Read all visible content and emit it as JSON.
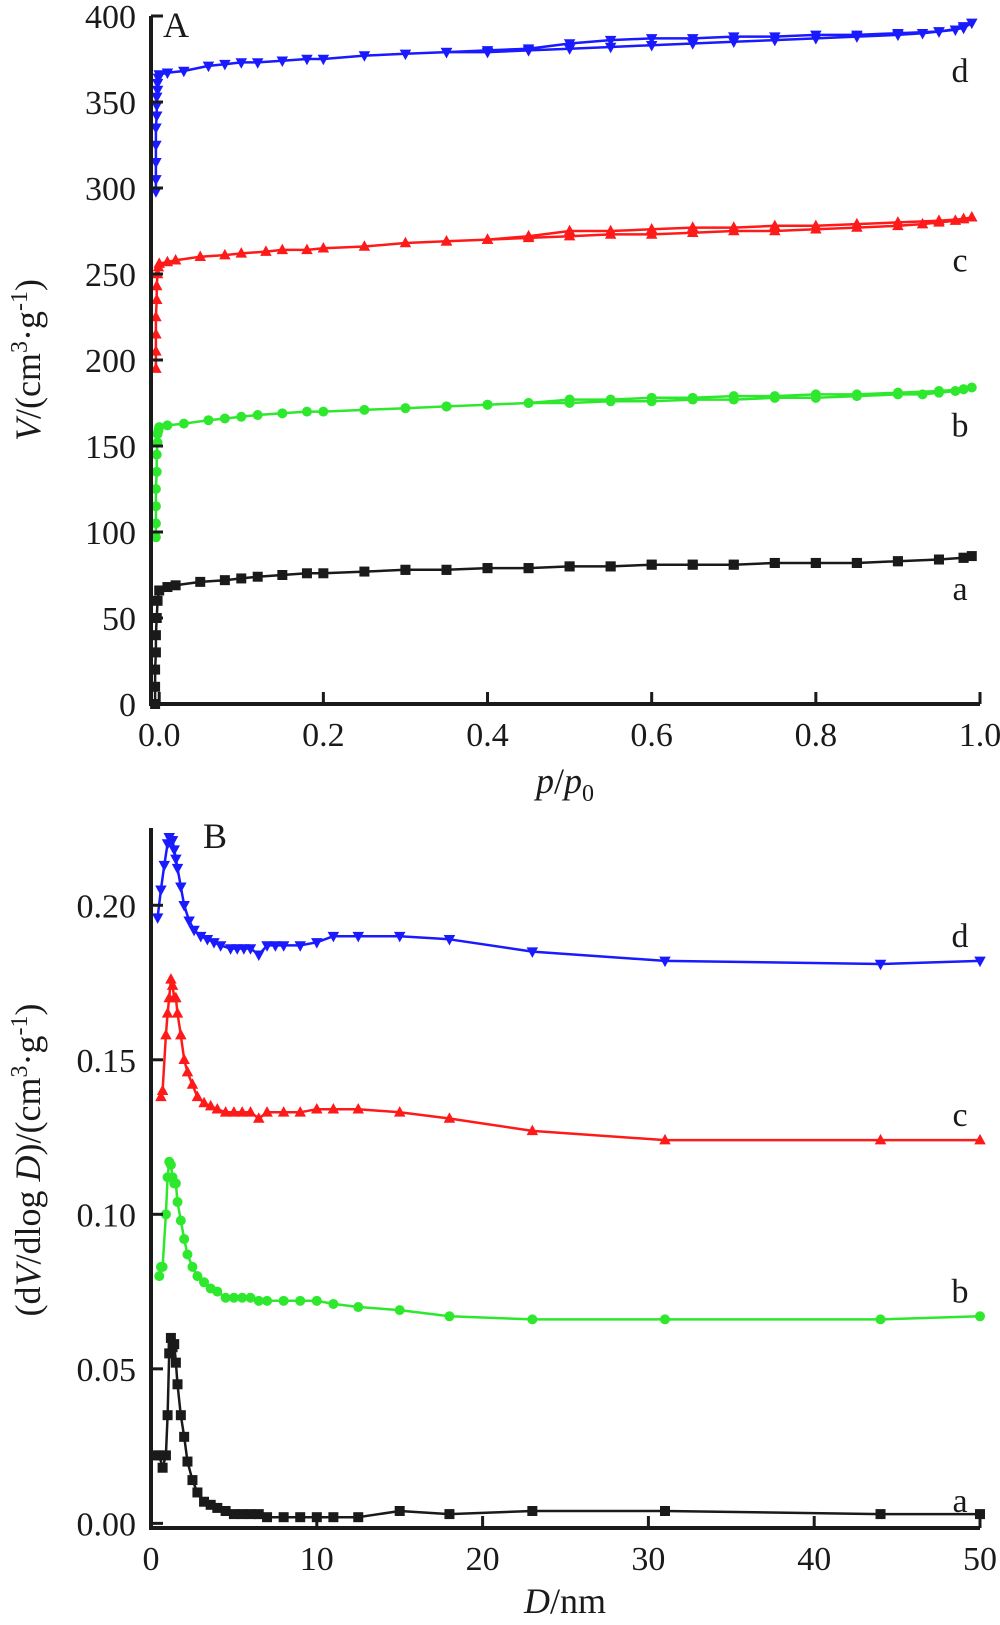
{
  "figure": {
    "panels": [
      {
        "id": "A",
        "panel_label": "A",
        "xlabel_italic": "p",
        "xlabel_mid": "/",
        "xlabel_italic2": "p",
        "xlabel_sub": "0",
        "ylabel_italic": "V",
        "ylabel_rest": "/(cm",
        "ylabel_sup1": "3",
        "ylabel_rest2": "·g",
        "ylabel_sup2": "-1",
        "ylabel_end": ")"
      },
      {
        "id": "B",
        "panel_label": "B",
        "xlabel_italic": "D",
        "xlabel_rest": "/nm",
        "ylabel_a": "(d",
        "ylabel_italic1": "V",
        "ylabel_b": "/dlog ",
        "ylabel_italic2": "D",
        "ylabel_c": ")/(cm",
        "ylabel_sup1": "3",
        "ylabel_d": "·g",
        "ylabel_sup2": "-1",
        "ylabel_e": ")"
      }
    ]
  },
  "chart_data": [
    {
      "type": "line",
      "panel": "A",
      "xlim": [
        -0.01,
        1.0
      ],
      "ylim": [
        0,
        400
      ],
      "xticks": [
        0.0,
        0.2,
        0.4,
        0.6,
        0.8,
        1.0
      ],
      "xtick_labels": [
        "0.0",
        "0.2",
        "0.4",
        "0.6",
        "0.8",
        "1.0"
      ],
      "yticks": [
        0,
        50,
        100,
        150,
        200,
        250,
        300,
        350,
        400
      ],
      "ytick_labels": [
        "0",
        "50",
        "100",
        "150",
        "200",
        "250",
        "300",
        "350",
        "400"
      ],
      "grid": false,
      "series": [
        {
          "name": "a",
          "color": "#1a1a1a",
          "marker": "square",
          "x": [
            -0.005,
            -0.005,
            -0.005,
            -0.004,
            -0.004,
            -0.003,
            -0.002,
            0.0,
            0.01,
            0.02,
            0.05,
            0.08,
            0.1,
            0.12,
            0.15,
            0.18,
            0.2,
            0.25,
            0.3,
            0.35,
            0.4,
            0.45,
            0.5,
            0.55,
            0.6,
            0.65,
            0.7,
            0.75,
            0.8,
            0.85,
            0.9,
            0.95,
            0.98,
            0.99,
            0.98,
            0.95,
            0.9,
            0.85,
            0.8,
            0.75,
            0.7,
            0.65,
            0.6,
            0.55,
            0.5,
            0.45,
            0.4,
            0.35,
            0.3
          ],
          "y": [
            0,
            10,
            20,
            30,
            40,
            50,
            60,
            66,
            68,
            69,
            71,
            72,
            73,
            74,
            75,
            76,
            76,
            77,
            78,
            78,
            79,
            79,
            80,
            80,
            81,
            81,
            81,
            82,
            82,
            82,
            83,
            84,
            85,
            86,
            85,
            84,
            83,
            82,
            82,
            82,
            81,
            81,
            81,
            80,
            80,
            79,
            79,
            78,
            78
          ]
        },
        {
          "name": "b",
          "color": "#2ee82e",
          "marker": "circle",
          "x": [
            -0.004,
            -0.004,
            -0.004,
            -0.004,
            -0.003,
            -0.003,
            -0.002,
            -0.002,
            -0.001,
            0.0,
            0.01,
            0.03,
            0.06,
            0.08,
            0.1,
            0.12,
            0.15,
            0.18,
            0.2,
            0.25,
            0.3,
            0.35,
            0.4,
            0.45,
            0.5,
            0.55,
            0.6,
            0.65,
            0.7,
            0.75,
            0.8,
            0.85,
            0.9,
            0.93,
            0.95,
            0.97,
            0.98,
            0.99,
            0.98,
            0.95,
            0.9,
            0.85,
            0.8,
            0.75,
            0.7,
            0.65,
            0.6,
            0.55,
            0.5,
            0.45,
            0.4,
            0.35
          ],
          "y": [
            97,
            105,
            115,
            125,
            135,
            145,
            152,
            157,
            159,
            161,
            162,
            163,
            165,
            166,
            167,
            168,
            169,
            170,
            170,
            171,
            172,
            173,
            174,
            175,
            175,
            176,
            176,
            177,
            177,
            178,
            178,
            179,
            180,
            180,
            181,
            182,
            183,
            184,
            183,
            182,
            181,
            180,
            180,
            179,
            179,
            178,
            178,
            177,
            177,
            175,
            174,
            173
          ]
        },
        {
          "name": "c",
          "color": "#ff1a1a",
          "marker": "triangle-up",
          "x": [
            -0.004,
            -0.004,
            -0.004,
            -0.004,
            -0.003,
            -0.003,
            -0.002,
            -0.001,
            0.0,
            0.01,
            0.02,
            0.05,
            0.08,
            0.1,
            0.13,
            0.15,
            0.18,
            0.2,
            0.25,
            0.3,
            0.35,
            0.4,
            0.45,
            0.5,
            0.55,
            0.6,
            0.65,
            0.7,
            0.75,
            0.8,
            0.85,
            0.9,
            0.93,
            0.95,
            0.97,
            0.98,
            0.99,
            0.98,
            0.95,
            0.9,
            0.85,
            0.8,
            0.75,
            0.7,
            0.65,
            0.6,
            0.55,
            0.5,
            0.45,
            0.4,
            0.35
          ],
          "y": [
            195,
            205,
            215,
            225,
            235,
            243,
            250,
            254,
            256,
            257,
            258,
            260,
            261,
            262,
            263,
            264,
            264,
            265,
            266,
            268,
            269,
            270,
            271,
            272,
            273,
            273,
            274,
            275,
            275,
            276,
            277,
            278,
            279,
            280,
            281,
            282,
            283,
            282,
            281,
            280,
            279,
            278,
            278,
            277,
            277,
            276,
            275,
            275,
            272,
            270,
            269
          ]
        },
        {
          "name": "d",
          "color": "#1a1aff",
          "marker": "triangle-down",
          "x": [
            -0.004,
            -0.004,
            -0.004,
            -0.004,
            -0.004,
            -0.003,
            -0.003,
            -0.003,
            -0.002,
            -0.002,
            -0.001,
            0.0,
            0.01,
            0.03,
            0.06,
            0.08,
            0.1,
            0.12,
            0.15,
            0.18,
            0.2,
            0.25,
            0.3,
            0.35,
            0.4,
            0.45,
            0.5,
            0.55,
            0.6,
            0.65,
            0.7,
            0.75,
            0.8,
            0.85,
            0.9,
            0.93,
            0.95,
            0.97,
            0.98,
            0.99,
            0.98,
            0.95,
            0.9,
            0.85,
            0.8,
            0.75,
            0.7,
            0.65,
            0.6,
            0.55,
            0.5,
            0.45,
            0.4,
            0.35
          ],
          "y": [
            298,
            305,
            315,
            325,
            335,
            342,
            348,
            353,
            357,
            361,
            364,
            366,
            367,
            368,
            371,
            372,
            373,
            373,
            374,
            375,
            375,
            377,
            378,
            379,
            379,
            380,
            381,
            382,
            383,
            384,
            385,
            386,
            387,
            388,
            389,
            390,
            391,
            392,
            394,
            396,
            393,
            391,
            390,
            389,
            389,
            388,
            388,
            387,
            387,
            386,
            384,
            381,
            380,
            379
          ]
        }
      ],
      "annotations": [
        "a",
        "b",
        "c",
        "d"
      ]
    },
    {
      "type": "line",
      "panel": "B",
      "xlim": [
        0,
        50
      ],
      "ylim": [
        -0.0015,
        0.225
      ],
      "xticks": [
        0,
        10,
        20,
        30,
        40,
        50
      ],
      "xtick_labels": [
        "0",
        "10",
        "20",
        "30",
        "40",
        "50"
      ],
      "yticks": [
        0.0,
        0.05,
        0.1,
        0.15,
        0.2
      ],
      "ytick_labels": [
        "0.00",
        "0.05",
        "0.10",
        "0.15",
        "0.20"
      ],
      "grid": false,
      "series": [
        {
          "name": "a",
          "color": "#1a1a1a",
          "marker": "square",
          "x": [
            0.3,
            0.5,
            0.7,
            0.9,
            1.0,
            1.1,
            1.2,
            1.3,
            1.4,
            1.5,
            1.6,
            1.8,
            2.0,
            2.2,
            2.5,
            2.8,
            3.2,
            3.6,
            4.0,
            4.5,
            5.0,
            5.5,
            6.0,
            6.5,
            7.0,
            8.0,
            9.0,
            10.0,
            11.0,
            12.5,
            15.0,
            18.0,
            23.0,
            31.0,
            44.0,
            50.0
          ],
          "y": [
            0.022,
            0.022,
            0.018,
            0.022,
            0.035,
            0.055,
            0.06,
            0.057,
            0.058,
            0.052,
            0.045,
            0.035,
            0.028,
            0.02,
            0.014,
            0.01,
            0.007,
            0.006,
            0.005,
            0.004,
            0.003,
            0.003,
            0.003,
            0.003,
            0.002,
            0.002,
            0.002,
            0.002,
            0.002,
            0.002,
            0.004,
            0.003,
            0.004,
            0.004,
            0.003,
            0.003
          ]
        },
        {
          "name": "b",
          "color": "#2ee82e",
          "marker": "circle",
          "x": [
            0.5,
            0.6,
            0.7,
            0.9,
            1.0,
            1.1,
            1.2,
            1.3,
            1.4,
            1.5,
            1.6,
            1.8,
            2.0,
            2.2,
            2.5,
            2.8,
            3.2,
            3.6,
            4.0,
            4.5,
            5.0,
            5.5,
            6.0,
            6.5,
            7.0,
            8.0,
            9.0,
            10.0,
            11.0,
            12.5,
            15.0,
            18.0,
            23.0,
            31.0,
            44.0,
            50.0
          ],
          "y": [
            0.08,
            0.083,
            0.083,
            0.1,
            0.112,
            0.117,
            0.116,
            0.112,
            0.11,
            0.11,
            0.104,
            0.098,
            0.092,
            0.087,
            0.083,
            0.08,
            0.078,
            0.076,
            0.075,
            0.073,
            0.073,
            0.073,
            0.073,
            0.072,
            0.072,
            0.072,
            0.072,
            0.072,
            0.071,
            0.07,
            0.069,
            0.067,
            0.066,
            0.066,
            0.066,
            0.067
          ]
        },
        {
          "name": "c",
          "color": "#ff1a1a",
          "marker": "triangle-up",
          "x": [
            0.6,
            0.7,
            0.9,
            1.0,
            1.1,
            1.2,
            1.3,
            1.4,
            1.5,
            1.6,
            1.8,
            2.0,
            2.2,
            2.5,
            2.8,
            3.2,
            3.6,
            4.0,
            4.5,
            5.0,
            5.5,
            6.0,
            6.5,
            7.0,
            8.0,
            9.0,
            10.0,
            11.0,
            12.5,
            15.0,
            18.0,
            23.0,
            31.0,
            44.0,
            50.0
          ],
          "y": [
            0.138,
            0.14,
            0.158,
            0.165,
            0.17,
            0.176,
            0.174,
            0.17,
            0.17,
            0.165,
            0.158,
            0.15,
            0.146,
            0.142,
            0.138,
            0.136,
            0.135,
            0.134,
            0.133,
            0.133,
            0.133,
            0.133,
            0.131,
            0.133,
            0.133,
            0.133,
            0.134,
            0.134,
            0.134,
            0.133,
            0.131,
            0.127,
            0.124,
            0.124,
            0.124
          ]
        },
        {
          "name": "d",
          "color": "#1a1aff",
          "marker": "triangle-down",
          "x": [
            0.4,
            0.6,
            0.8,
            1.0,
            1.1,
            1.2,
            1.3,
            1.4,
            1.5,
            1.6,
            1.8,
            2.0,
            2.3,
            2.6,
            3.0,
            3.4,
            3.8,
            4.2,
            4.8,
            5.2,
            5.6,
            6.0,
            6.5,
            7.0,
            7.5,
            8.0,
            9.0,
            10.0,
            11.0,
            12.5,
            15.0,
            18.0,
            23.0,
            31.0,
            44.0,
            50.0
          ],
          "y": [
            0.196,
            0.205,
            0.213,
            0.22,
            0.222,
            0.221,
            0.221,
            0.218,
            0.215,
            0.212,
            0.206,
            0.2,
            0.195,
            0.192,
            0.19,
            0.189,
            0.188,
            0.187,
            0.186,
            0.186,
            0.186,
            0.186,
            0.184,
            0.187,
            0.187,
            0.187,
            0.187,
            0.188,
            0.19,
            0.19,
            0.19,
            0.189,
            0.185,
            0.182,
            0.181,
            0.182
          ]
        }
      ],
      "annotations": [
        "a",
        "b",
        "c",
        "d"
      ]
    }
  ]
}
